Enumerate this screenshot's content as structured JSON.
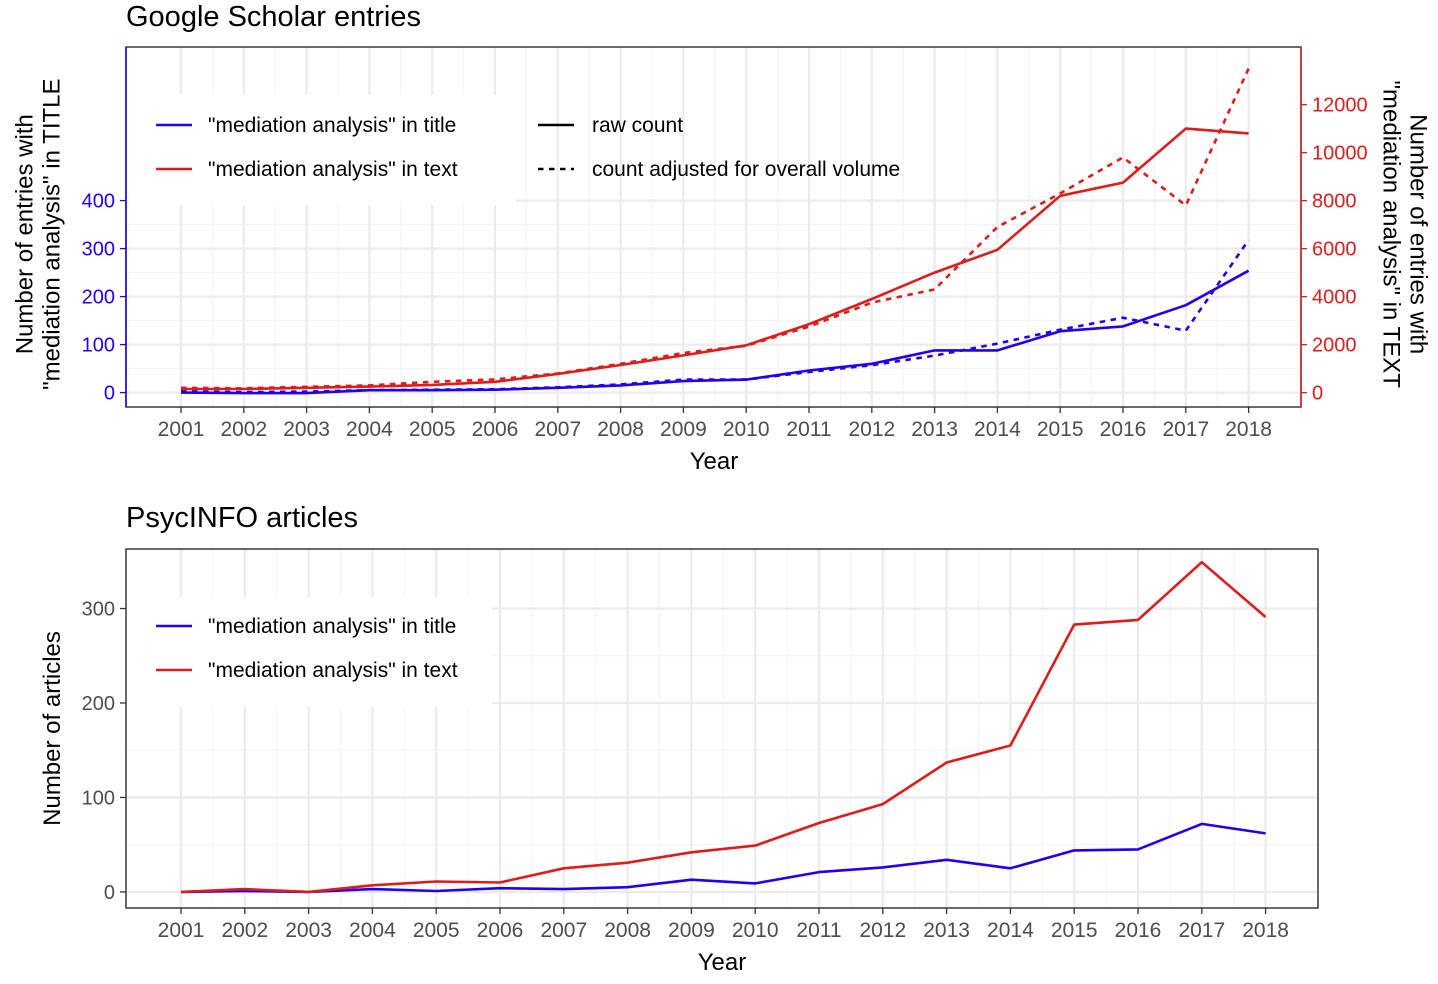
{
  "colors": {
    "title_series": "#2200ee",
    "text_series": "#dd1c1c",
    "panel_border": "#1a1a1a",
    "grid": "#ebebeb",
    "tick_text": "#4d4d4d"
  },
  "chart_data": [
    {
      "type": "line",
      "title": "Google Scholar entries",
      "xlabel": "Year",
      "ylabel_left": "Number of entries with\n\"mediation analysis\" in TITLE",
      "ylabel_right": "Number of entries with\n\"mediation analysis\" in TEXT",
      "x": [
        2001,
        2002,
        2003,
        2004,
        2005,
        2006,
        2007,
        2008,
        2009,
        2010,
        2011,
        2012,
        2013,
        2014,
        2015,
        2016,
        2017,
        2018
      ],
      "y_left_ticks": [
        0,
        100,
        200,
        300,
        400
      ],
      "y_right_ticks": [
        0,
        2000,
        4000,
        6000,
        8000,
        10000,
        12000
      ],
      "ylim_left": [
        -30,
        720
      ],
      "ylim_right": [
        -600,
        14400
      ],
      "grid": true,
      "legend_position": "top-left",
      "legend": {
        "series": [
          {
            "label": "\"mediation analysis\" in title",
            "color": "#2200ee"
          },
          {
            "label": "\"mediation analysis\" in text",
            "color": "#dd1c1c"
          }
        ],
        "linetypes": [
          {
            "label": "raw count",
            "dash": "solid"
          },
          {
            "label": "count adjusted for overall volume",
            "dash": "dotted"
          }
        ]
      },
      "series": [
        {
          "axis": "left",
          "color": "#2200ee",
          "dash": "solid",
          "values": [
            0,
            -1,
            -1,
            5,
            5,
            6,
            10,
            15,
            24,
            27,
            46,
            60,
            88,
            88,
            128,
            138,
            182,
            254
          ]
        },
        {
          "axis": "left",
          "color": "#2200ee",
          "dash": "dotted",
          "values": [
            3,
            1,
            2,
            5,
            6,
            7,
            11,
            17,
            27,
            27,
            43,
            57,
            77,
            102,
            131,
            156,
            129,
            318
          ]
        },
        {
          "axis": "right",
          "color": "#dd1c1c",
          "dash": "solid",
          "values": [
            150,
            150,
            200,
            250,
            320,
            450,
            780,
            1150,
            1550,
            1970,
            2850,
            3900,
            5000,
            5950,
            8200,
            8750,
            11000,
            10800
          ]
        },
        {
          "axis": "right",
          "color": "#dd1c1c",
          "dash": "dotted",
          "values": [
            200,
            180,
            240,
            300,
            450,
            550,
            800,
            1200,
            1650,
            1950,
            2750,
            3750,
            4300,
            6900,
            8300,
            9800,
            7800,
            13500
          ]
        }
      ]
    },
    {
      "type": "line",
      "title": "PsycINFO articles",
      "xlabel": "Year",
      "ylabel": "Number of articles",
      "x": [
        2001,
        2002,
        2003,
        2004,
        2005,
        2006,
        2007,
        2008,
        2009,
        2010,
        2011,
        2012,
        2013,
        2014,
        2015,
        2016,
        2017,
        2018
      ],
      "y_ticks": [
        0,
        100,
        200,
        300
      ],
      "ylim": [
        -17,
        363
      ],
      "grid": true,
      "legend_position": "top-left",
      "legend": {
        "series": [
          {
            "label": "\"mediation analysis\" in title",
            "color": "#2200ee"
          },
          {
            "label": "\"mediation analysis\" in text",
            "color": "#dd1c1c"
          }
        ]
      },
      "series": [
        {
          "color": "#2200ee",
          "dash": "solid",
          "values": [
            0,
            1,
            0,
            3,
            1,
            4,
            3,
            5,
            13,
            9,
            21,
            26,
            34,
            25,
            44,
            45,
            72,
            62
          ]
        },
        {
          "color": "#dd1c1c",
          "dash": "solid",
          "values": [
            0,
            3,
            0,
            7,
            11,
            10,
            25,
            31,
            42,
            49,
            73,
            93,
            137,
            155,
            283,
            288,
            349,
            291
          ]
        }
      ]
    }
  ]
}
